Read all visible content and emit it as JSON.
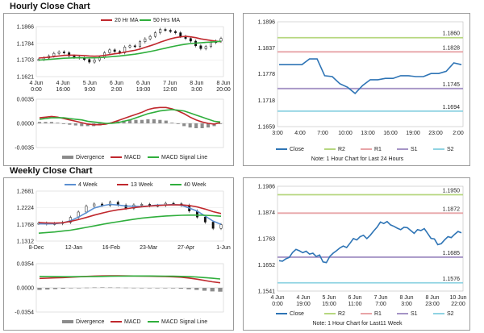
{
  "sections": {
    "hourly_title": "Hourly Close Chart",
    "weekly_title": "Weekly Close Chart"
  },
  "colors": {
    "ma_short": "#c0282d",
    "ma_long": "#2fae3c",
    "week4": "#5b8fd1",
    "week13": "#c0282d",
    "week40": "#2fae3c",
    "macd": "#c0282d",
    "signal": "#2fae3c",
    "divergence": "#8c8c8c",
    "close": "#2e74b5",
    "r2": "#b6d77f",
    "r1": "#e8a4a7",
    "s1": "#a594c6",
    "s2": "#8fd3e2",
    "candle": "#111111"
  },
  "chart_data": [
    {
      "id": "hourly_price",
      "type": "line",
      "legend": [
        "20 Hr MA",
        "50 Hrs MA"
      ],
      "y_ticks": [
        "1.1866",
        "1.1784",
        "1.1703",
        "1.1621"
      ],
      "ylim": [
        1.1621,
        1.1866
      ],
      "x_ticks": [
        [
          "4 Jun",
          "0:00"
        ],
        [
          "4 Jun",
          "16:00"
        ],
        [
          "5 Jun",
          "9:00"
        ],
        [
          "6 Jun",
          "2:00"
        ],
        [
          "6 Jun",
          "19:00"
        ],
        [
          "7 Jun",
          "12:00"
        ],
        [
          "8 Jun",
          "3:00"
        ],
        [
          "8 Jun",
          "20:00"
        ]
      ],
      "close": [
        1.1705,
        1.1712,
        1.1722,
        1.1735,
        1.1742,
        1.1738,
        1.1722,
        1.1716,
        1.1712,
        1.1705,
        1.1692,
        1.1702,
        1.1716,
        1.1738,
        1.1752,
        1.1744,
        1.1738,
        1.1766,
        1.1772,
        1.1768,
        1.1792,
        1.1806,
        1.1818,
        1.1836,
        1.1852,
        1.1848,
        1.1842,
        1.1836,
        1.1818,
        1.1808,
        1.1795,
        1.1772,
        1.1758,
        1.1768,
        1.1788,
        1.1795,
        1.1808
      ],
      "series": [
        {
          "name": "20 Hr MA",
          "values": [
            1.1712,
            1.1714,
            1.1716,
            1.1719,
            1.1722,
            1.1725,
            1.1726,
            1.1726,
            1.1725,
            1.1724,
            1.1722,
            1.1721,
            1.1722,
            1.1725,
            1.1729,
            1.1733,
            1.1736,
            1.1741,
            1.1746,
            1.175,
            1.1756,
            1.1764,
            1.1772,
            1.178,
            1.179,
            1.1798,
            1.1806,
            1.1812,
            1.1816,
            1.1818,
            1.1816,
            1.1812,
            1.1806,
            1.1802,
            1.1798,
            1.1795,
            1.1792
          ]
        },
        {
          "name": "50 Hrs MA",
          "values": [
            1.1702,
            1.1703,
            1.1705,
            1.1707,
            1.1709,
            1.1711,
            1.1712,
            1.1713,
            1.1713,
            1.1713,
            1.1713,
            1.1713,
            1.1714,
            1.1716,
            1.1718,
            1.172,
            1.1722,
            1.1725,
            1.1728,
            1.1731,
            1.1735,
            1.1739,
            1.1744,
            1.1749,
            1.1755,
            1.176,
            1.1766,
            1.1771,
            1.1776,
            1.178,
            1.1783,
            1.1785,
            1.1787,
            1.1789,
            1.179,
            1.1792,
            1.1794
          ]
        }
      ]
    },
    {
      "id": "hourly_macd",
      "type": "line",
      "legend": [
        "Divergence",
        "MACD",
        "MACD Signal Line"
      ],
      "y_ticks": [
        "0.0035",
        "0.0000",
        "-0.0035"
      ],
      "ylim": [
        -0.0035,
        0.0035
      ],
      "series": [
        {
          "name": "MACD",
          "values": [
            0.0008,
            0.0009,
            0.001,
            0.0009,
            0.0007,
            0.0005,
            0.0003,
            0.0001,
            -0.0001,
            -0.0002,
            -0.0002,
            -0.0001,
            0.0001,
            0.0004,
            0.0007,
            0.001,
            0.0013,
            0.0016,
            0.002,
            0.0022,
            0.0023,
            0.0023,
            0.0021,
            0.0018,
            0.0014,
            0.0009,
            0.0005,
            0.0002,
            0.0,
            -0.0001,
            0.0001
          ]
        },
        {
          "name": "MACD Signal Line",
          "values": [
            0.0006,
            0.0007,
            0.0008,
            0.0008,
            0.0008,
            0.0007,
            0.0006,
            0.0005,
            0.0003,
            0.0002,
            0.0001,
            0.0,
            0.0,
            0.0001,
            0.0003,
            0.0005,
            0.0008,
            0.0011,
            0.0014,
            0.0016,
            0.0018,
            0.0019,
            0.002,
            0.0019,
            0.0018,
            0.0015,
            0.0012,
            0.0009,
            0.0006,
            0.0003,
            0.0002
          ]
        },
        {
          "name": "Divergence",
          "values": [
            0.0002,
            0.0002,
            0.0002,
            0.0001,
            -0.0001,
            -0.0002,
            -0.0003,
            -0.0004,
            -0.0004,
            -0.0004,
            -0.0003,
            -0.0001,
            0.0001,
            0.0003,
            0.0004,
            0.0005,
            0.0005,
            0.0005,
            0.0006,
            0.0006,
            0.0005,
            0.0004,
            0.0001,
            -0.0001,
            -0.0004,
            -0.0006,
            -0.0007,
            -0.0007,
            -0.0006,
            -0.0004,
            -0.0001
          ]
        }
      ]
    },
    {
      "id": "hourly_pivot",
      "type": "line",
      "legend": [
        "Close",
        "R2",
        "R1",
        "S1",
        "S2"
      ],
      "y_ticks": [
        "1.1896",
        "1.1837",
        "1.1778",
        "1.1718",
        "1.1659"
      ],
      "ylim": [
        1.1659,
        1.1896
      ],
      "x_ticks": [
        "3:00",
        "4:00",
        "7:00",
        "10:00",
        "13:00",
        "16:00",
        "19:00",
        "23:00",
        "2:00"
      ],
      "levels": [
        {
          "name": "R2",
          "value": 1.186,
          "label": "1.1860"
        },
        {
          "name": "R1",
          "value": 1.1828,
          "label": "1.1828"
        },
        {
          "name": "S1",
          "value": 1.1745,
          "label": "1.1745"
        },
        {
          "name": "S2",
          "value": 1.1694,
          "label": "1.1694"
        }
      ],
      "close": [
        1.1799,
        1.1799,
        1.1799,
        1.1799,
        1.1812,
        1.1812,
        1.1774,
        1.1772,
        1.1756,
        1.1748,
        1.1734,
        1.1752,
        1.1765,
        1.1765,
        1.1768,
        1.1768,
        1.1774,
        1.1774,
        1.1772,
        1.1772,
        1.1779,
        1.1779,
        1.1784,
        1.1803,
        1.1799
      ],
      "note": "Note: 1 Hour Chart for Last 24 Hours"
    },
    {
      "id": "weekly_price",
      "type": "line",
      "legend": [
        "4 Week",
        "13 Week",
        "40 Week"
      ],
      "y_ticks": [
        "1.2681",
        "1.2224",
        "1.1768",
        "1.1312"
      ],
      "ylim": [
        1.1312,
        1.2681
      ],
      "x_ticks": [
        "8-Dec",
        "12-Jan",
        "16-Feb",
        "23-Mar",
        "27-Apr",
        "1-Jun"
      ],
      "close": [
        1.1802,
        1.1785,
        1.1792,
        1.1826,
        1.1962,
        1.2108,
        1.2268,
        1.2328,
        1.2288,
        1.2378,
        1.2298,
        1.2208,
        1.2304,
        1.2318,
        1.2282,
        1.2286,
        1.2348,
        1.2332,
        1.2292,
        1.2134,
        1.1968,
        1.1832,
        1.166,
        1.1762
      ],
      "series": [
        {
          "name": "4 Week",
          "values": [
            1.1785,
            1.1782,
            1.1788,
            1.1808,
            1.1868,
            1.1968,
            1.209,
            1.2218,
            1.2278,
            1.2318,
            1.2298,
            1.227,
            1.2265,
            1.2258,
            1.2276,
            1.2298,
            1.2302,
            1.2312,
            1.2292,
            1.2218,
            1.2132,
            1.1998,
            1.1858,
            1.1772
          ]
        },
        {
          "name": "13 Week",
          "values": [
            1.1818,
            1.1808,
            1.1804,
            1.1814,
            1.185,
            1.19,
            1.1958,
            1.2022,
            1.2078,
            1.2128,
            1.2168,
            1.2198,
            1.2228,
            1.2252,
            1.227,
            1.2286,
            1.2298,
            1.2306,
            1.2304,
            1.2286,
            1.2248,
            1.2188,
            1.2118,
            1.2068
          ]
        },
        {
          "name": "40 Week",
          "values": [
            1.1528,
            1.1545,
            1.1562,
            1.1585,
            1.161,
            1.1648,
            1.1688,
            1.1728,
            1.1768,
            1.1806,
            1.1842,
            1.1878,
            1.191,
            1.1938,
            1.1962,
            1.1982,
            1.1998,
            1.201,
            1.2018,
            1.2022,
            1.2022,
            1.2018,
            1.2008,
            1.1992
          ]
        }
      ]
    },
    {
      "id": "weekly_macd",
      "type": "line",
      "legend": [
        "Divergence",
        "MACD",
        "MACD Signal Line"
      ],
      "y_ticks": [
        "0.0354",
        "0.0000",
        "-0.0354"
      ],
      "ylim": [
        -0.0354,
        0.0354
      ],
      "series": [
        {
          "name": "MACD",
          "values": [
            0.0138,
            0.0142,
            0.0146,
            0.015,
            0.0156,
            0.0162,
            0.0168,
            0.0172,
            0.0175,
            0.0176,
            0.0176,
            0.0175,
            0.0174,
            0.0172,
            0.017,
            0.0168,
            0.0166,
            0.0162,
            0.0156,
            0.0144,
            0.0128,
            0.0108,
            0.0088,
            0.0074
          ]
        },
        {
          "name": "MACD Signal Line",
          "values": [
            0.0168,
            0.0166,
            0.0164,
            0.0163,
            0.0163,
            0.0164,
            0.0165,
            0.0166,
            0.0168,
            0.017,
            0.0171,
            0.0172,
            0.0173,
            0.0173,
            0.0173,
            0.0172,
            0.0171,
            0.017,
            0.0168,
            0.0164,
            0.0158,
            0.015,
            0.014,
            0.013
          ]
        },
        {
          "name": "Divergence",
          "values": [
            -0.003,
            -0.0024,
            -0.0018,
            -0.0013,
            -0.0007,
            -0.0002,
            0.0003,
            0.0006,
            0.0007,
            0.0006,
            0.0005,
            0.0003,
            0.0001,
            -0.0001,
            -0.0003,
            -0.0004,
            -0.0005,
            -0.0008,
            -0.0012,
            -0.002,
            -0.003,
            -0.0042,
            -0.0052,
            -0.0056
          ]
        }
      ]
    },
    {
      "id": "weekly_pivot",
      "type": "line",
      "legend": [
        "Close",
        "R2",
        "R1",
        "S1",
        "S2"
      ],
      "y_ticks": [
        "1.1986",
        "1.1874",
        "1.1763",
        "1.1652",
        "1.1541"
      ],
      "ylim": [
        1.1541,
        1.1986
      ],
      "x_ticks": [
        [
          "4 Jun",
          "0:00"
        ],
        [
          "4 Jun",
          "19:00"
        ],
        [
          "5 Jun",
          "15:00"
        ],
        [
          "6 Jun",
          "11:00"
        ],
        [
          "7 Jun",
          "7:00"
        ],
        [
          "8 Jun",
          "3:00"
        ],
        [
          "8 Jun",
          "23:00"
        ],
        [
          "10 Jun",
          "22:00"
        ]
      ],
      "levels": [
        {
          "name": "R2",
          "value": 1.195,
          "label": "1.1950"
        },
        {
          "name": "R1",
          "value": 1.1872,
          "label": "1.1872"
        },
        {
          "name": "S1",
          "value": 1.1685,
          "label": "1.1685"
        },
        {
          "name": "S2",
          "value": 1.1576,
          "label": "1.1576"
        }
      ],
      "close": [
        1.167,
        1.1668,
        1.1678,
        1.1684,
        1.1705,
        1.1718,
        1.1712,
        1.1704,
        1.171,
        1.1698,
        1.1702,
        1.1688,
        1.1694,
        1.1665,
        1.1662,
        1.1688,
        1.1702,
        1.1712,
        1.1724,
        1.1732,
        1.1726,
        1.1744,
        1.1764,
        1.1758,
        1.1772,
        1.1778,
        1.1764,
        1.1778,
        1.1796,
        1.1812,
        1.1834,
        1.1828,
        1.1836,
        1.1822,
        1.1816,
        1.1808,
        1.1802,
        1.1812,
        1.181,
        1.1798,
        1.1786,
        1.1802,
        1.1798,
        1.1806,
        1.1786,
        1.1765,
        1.1762,
        1.1738,
        1.1742,
        1.1758,
        1.1772,
        1.1768,
        1.1782,
        1.1794,
        1.1788
      ],
      "note": "Note: 1 Hour Chart for Last11 Week"
    }
  ]
}
